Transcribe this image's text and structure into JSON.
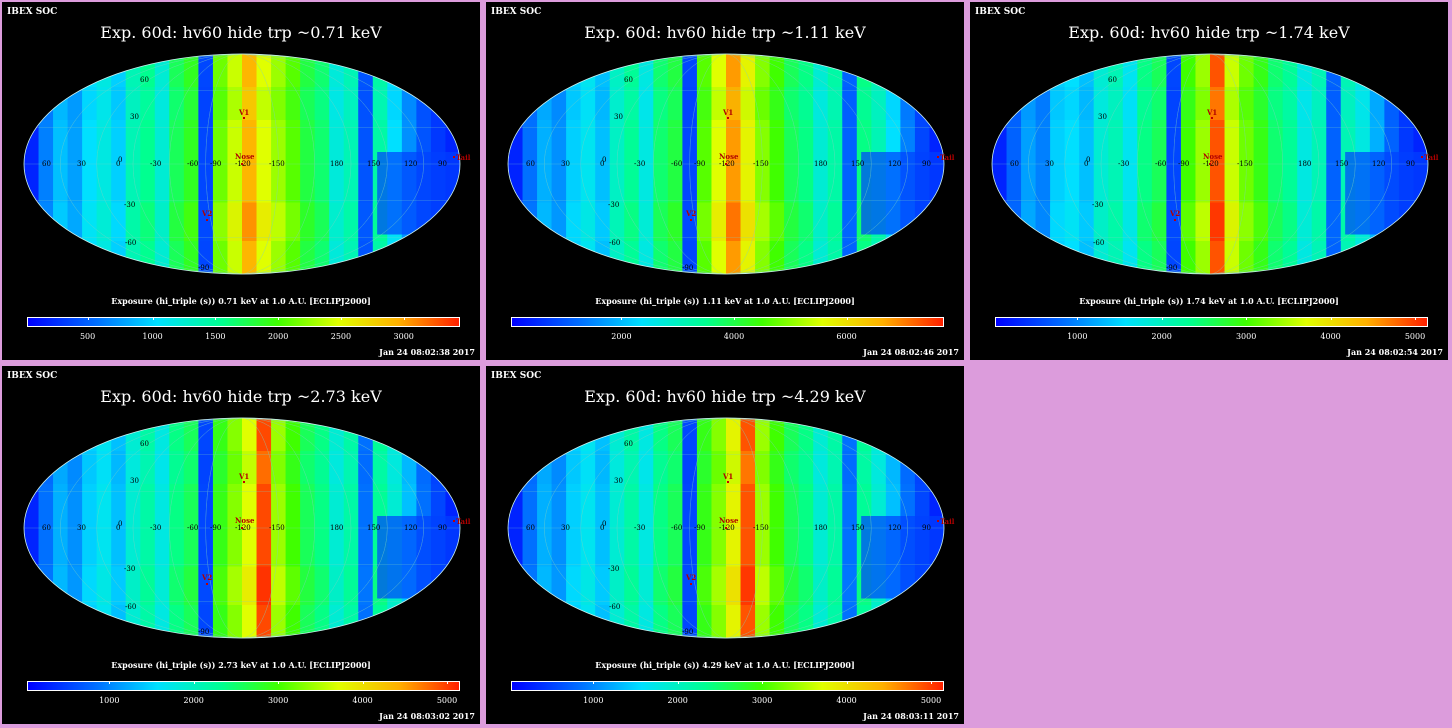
{
  "common": {
    "header": "IBEX SOC",
    "lat_labels": [
      "60",
      "30",
      "0",
      "-30",
      "-60",
      "-90"
    ],
    "lon_labels": [
      "60",
      "30",
      "0",
      "-30",
      "-60",
      "-90",
      "-120",
      "-150",
      "180",
      "150",
      "120",
      "90"
    ],
    "markers": {
      "v1": "V1",
      "nose": "Nose",
      "v2": "V2",
      "tail": "Tail"
    }
  },
  "panels": [
    {
      "title": "Exp.   60d: hv60 hide trp ~0.71 keV",
      "colorbar_title": "Exposure (hi_triple (s))  0.71 keV at 1.0 A.U. [ECLIPJ2000]",
      "ticks": [
        {
          "v": "500",
          "p": 0.14
        },
        {
          "v": "1000",
          "p": 0.29
        },
        {
          "v": "1500",
          "p": 0.435
        },
        {
          "v": "2000",
          "p": 0.58
        },
        {
          "v": "2500",
          "p": 0.725
        },
        {
          "v": "3000",
          "p": 0.87
        }
      ],
      "timestamp": "Jan 24 08:02:38 2017"
    },
    {
      "title": "Exp.   60d: hv60 hide trp ~1.11 keV",
      "colorbar_title": "Exposure (hi_triple (s))  1.11 keV at 1.0 A.U. [ECLIPJ2000]",
      "ticks": [
        {
          "v": "2000",
          "p": 0.255
        },
        {
          "v": "4000",
          "p": 0.515
        },
        {
          "v": "6000",
          "p": 0.775
        }
      ],
      "timestamp": "Jan 24 08:02:46 2017"
    },
    {
      "title": "Exp.   60d: hv60 hide trp ~1.74 keV",
      "colorbar_title": "Exposure (hi_triple (s))  1.74 keV at 1.0 A.U. [ECLIPJ2000]",
      "ticks": [
        {
          "v": "1000",
          "p": 0.19
        },
        {
          "v": "2000",
          "p": 0.385
        },
        {
          "v": "3000",
          "p": 0.58
        },
        {
          "v": "4000",
          "p": 0.775
        },
        {
          "v": "5000",
          "p": 0.97
        }
      ],
      "timestamp": "Jan 24 08:02:54 2017"
    },
    {
      "title": "Exp.   60d: hv60 hide trp ~2.73 keV",
      "colorbar_title": "Exposure (hi_triple (s))  2.73 keV at 1.0 A.U. [ECLIPJ2000]",
      "ticks": [
        {
          "v": "1000",
          "p": 0.19
        },
        {
          "v": "2000",
          "p": 0.385
        },
        {
          "v": "3000",
          "p": 0.58
        },
        {
          "v": "4000",
          "p": 0.775
        },
        {
          "v": "5000",
          "p": 0.97
        }
      ],
      "timestamp": "Jan 24 08:03:02 2017"
    },
    {
      "title": "Exp.   60d: hv60 hide trp ~4.29 keV",
      "colorbar_title": "Exposure (hi_triple (s))  4.29 keV at 1.0 A.U. [ECLIPJ2000]",
      "ticks": [
        {
          "v": "1000",
          "p": 0.19
        },
        {
          "v": "2000",
          "p": 0.385
        },
        {
          "v": "3000",
          "p": 0.58
        },
        {
          "v": "4000",
          "p": 0.775
        },
        {
          "v": "5000",
          "p": 0.97
        }
      ],
      "timestamp": "Jan 24 08:03:11 2017"
    }
  ]
}
